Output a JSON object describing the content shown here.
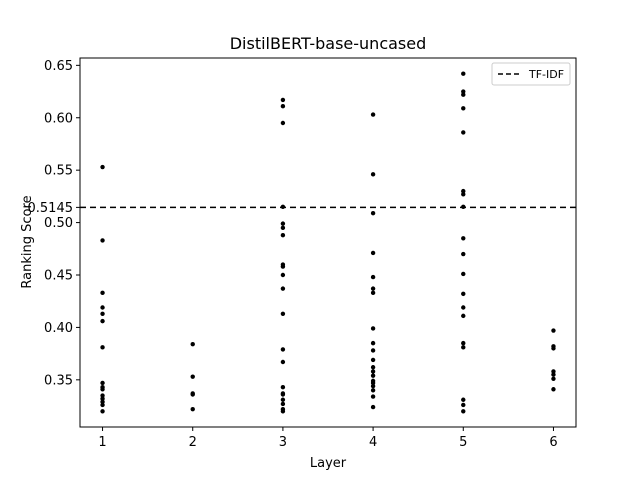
{
  "chart_data": {
    "type": "scatter",
    "title": "DistilBERT-base-uncased",
    "xlabel": "Layer",
    "ylabel": "Ranking Score",
    "xlim": [
      0.75,
      6.25
    ],
    "ylim": [
      0.305,
      0.657
    ],
    "x_ticks": [
      1,
      2,
      3,
      4,
      5,
      6
    ],
    "y_ticks": [
      0.35,
      0.4,
      0.45,
      0.5,
      0.55,
      0.6,
      0.65
    ],
    "y_tick_labels": [
      "0.35",
      "0.40",
      "0.45",
      "0.50",
      "0.55",
      "0.60",
      "0.65"
    ],
    "grid": false,
    "legend_position": "top-right",
    "reference_line": {
      "name": "TF-IDF",
      "value": 0.5145,
      "label": "0.5145",
      "style": "dashed",
      "color": "#000000"
    },
    "series": [
      {
        "color": "#000000",
        "points": [
          {
            "x": 1,
            "y": 0.553
          },
          {
            "x": 1,
            "y": 0.483
          },
          {
            "x": 1,
            "y": 0.433
          },
          {
            "x": 1,
            "y": 0.419
          },
          {
            "x": 1,
            "y": 0.413
          },
          {
            "x": 1,
            "y": 0.406
          },
          {
            "x": 1,
            "y": 0.381
          },
          {
            "x": 1,
            "y": 0.347
          },
          {
            "x": 1,
            "y": 0.343
          },
          {
            "x": 1,
            "y": 0.341
          },
          {
            "x": 1,
            "y": 0.335
          },
          {
            "x": 1,
            "y": 0.332
          },
          {
            "x": 1,
            "y": 0.329
          },
          {
            "x": 1,
            "y": 0.326
          },
          {
            "x": 1,
            "y": 0.32
          },
          {
            "x": 2,
            "y": 0.384
          },
          {
            "x": 2,
            "y": 0.353
          },
          {
            "x": 2,
            "y": 0.337
          },
          {
            "x": 2,
            "y": 0.336
          },
          {
            "x": 2,
            "y": 0.322
          },
          {
            "x": 3,
            "y": 0.617
          },
          {
            "x": 3,
            "y": 0.611
          },
          {
            "x": 3,
            "y": 0.595
          },
          {
            "x": 3,
            "y": 0.515
          },
          {
            "x": 3,
            "y": 0.499
          },
          {
            "x": 3,
            "y": 0.495
          },
          {
            "x": 3,
            "y": 0.488
          },
          {
            "x": 3,
            "y": 0.46
          },
          {
            "x": 3,
            "y": 0.458
          },
          {
            "x": 3,
            "y": 0.45
          },
          {
            "x": 3,
            "y": 0.437
          },
          {
            "x": 3,
            "y": 0.413
          },
          {
            "x": 3,
            "y": 0.379
          },
          {
            "x": 3,
            "y": 0.367
          },
          {
            "x": 3,
            "y": 0.343
          },
          {
            "x": 3,
            "y": 0.337
          },
          {
            "x": 3,
            "y": 0.336
          },
          {
            "x": 3,
            "y": 0.331
          },
          {
            "x": 3,
            "y": 0.327
          },
          {
            "x": 3,
            "y": 0.322
          },
          {
            "x": 3,
            "y": 0.32
          },
          {
            "x": 4,
            "y": 0.603
          },
          {
            "x": 4,
            "y": 0.546
          },
          {
            "x": 4,
            "y": 0.509
          },
          {
            "x": 4,
            "y": 0.471
          },
          {
            "x": 4,
            "y": 0.448
          },
          {
            "x": 4,
            "y": 0.437
          },
          {
            "x": 4,
            "y": 0.433
          },
          {
            "x": 4,
            "y": 0.399
          },
          {
            "x": 4,
            "y": 0.385
          },
          {
            "x": 4,
            "y": 0.378
          },
          {
            "x": 4,
            "y": 0.369
          },
          {
            "x": 4,
            "y": 0.362
          },
          {
            "x": 4,
            "y": 0.358
          },
          {
            "x": 4,
            "y": 0.354
          },
          {
            "x": 4,
            "y": 0.349
          },
          {
            "x": 4,
            "y": 0.347
          },
          {
            "x": 4,
            "y": 0.344
          },
          {
            "x": 4,
            "y": 0.34
          },
          {
            "x": 4,
            "y": 0.334
          },
          {
            "x": 4,
            "y": 0.324
          },
          {
            "x": 5,
            "y": 0.642
          },
          {
            "x": 5,
            "y": 0.625
          },
          {
            "x": 5,
            "y": 0.622
          },
          {
            "x": 5,
            "y": 0.609
          },
          {
            "x": 5,
            "y": 0.586
          },
          {
            "x": 5,
            "y": 0.53
          },
          {
            "x": 5,
            "y": 0.527
          },
          {
            "x": 5,
            "y": 0.515
          },
          {
            "x": 5,
            "y": 0.485
          },
          {
            "x": 5,
            "y": 0.47
          },
          {
            "x": 5,
            "y": 0.451
          },
          {
            "x": 5,
            "y": 0.432
          },
          {
            "x": 5,
            "y": 0.419
          },
          {
            "x": 5,
            "y": 0.411
          },
          {
            "x": 5,
            "y": 0.385
          },
          {
            "x": 5,
            "y": 0.381
          },
          {
            "x": 5,
            "y": 0.331
          },
          {
            "x": 5,
            "y": 0.326
          },
          {
            "x": 5,
            "y": 0.32
          },
          {
            "x": 6,
            "y": 0.397
          },
          {
            "x": 6,
            "y": 0.382
          },
          {
            "x": 6,
            "y": 0.38
          },
          {
            "x": 6,
            "y": 0.358
          },
          {
            "x": 6,
            "y": 0.355
          },
          {
            "x": 6,
            "y": 0.351
          },
          {
            "x": 6,
            "y": 0.341
          }
        ]
      }
    ]
  }
}
